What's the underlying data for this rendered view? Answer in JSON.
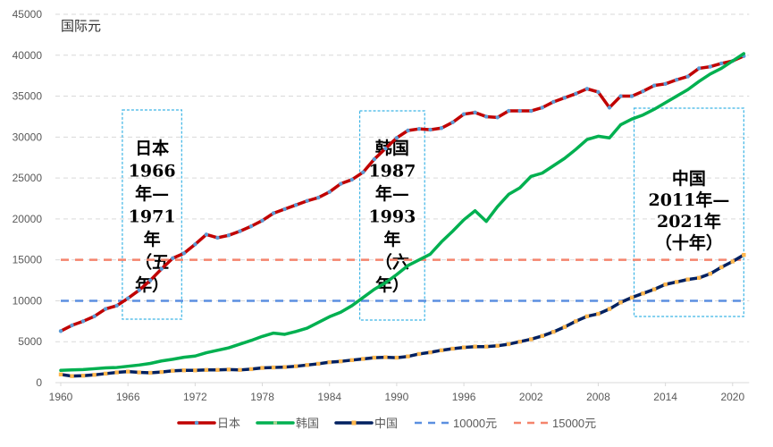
{
  "chart_data": {
    "type": "line",
    "unit_label": "国际元",
    "x": [
      1960,
      1961,
      1962,
      1963,
      1964,
      1965,
      1966,
      1967,
      1968,
      1969,
      1970,
      1971,
      1972,
      1973,
      1974,
      1975,
      1976,
      1977,
      1978,
      1979,
      1980,
      1981,
      1982,
      1983,
      1984,
      1985,
      1986,
      1987,
      1988,
      1989,
      1990,
      1991,
      1992,
      1993,
      1994,
      1995,
      1996,
      1997,
      1998,
      1999,
      2000,
      2001,
      2002,
      2003,
      2004,
      2005,
      2006,
      2007,
      2008,
      2009,
      2010,
      2011,
      2012,
      2013,
      2014,
      2015,
      2016,
      2017,
      2018,
      2019,
      2020,
      2021
    ],
    "xticks": [
      "1960",
      "1966",
      "1972",
      "1978",
      "1984",
      "1990",
      "1996",
      "2002",
      "2008",
      "2014",
      "2020"
    ],
    "yticks": [
      "0",
      "5000",
      "10000",
      "15000",
      "20000",
      "25000",
      "30000",
      "35000",
      "40000",
      "45000"
    ],
    "ylim": [
      0,
      45000
    ],
    "grid": true,
    "legend_position": "bottom",
    "series": [
      {
        "name": "日本",
        "color": "#C00000",
        "marker_color": "#5B9BD5",
        "values": [
          6300,
          7000,
          7500,
          8100,
          9000,
          9400,
          10300,
          11300,
          12500,
          13900,
          15200,
          15800,
          16900,
          18100,
          17700,
          18000,
          18500,
          19100,
          19800,
          20700,
          21200,
          21700,
          22200,
          22600,
          23300,
          24300,
          24800,
          25700,
          27300,
          28600,
          29900,
          30800,
          31000,
          30900,
          31100,
          31800,
          32800,
          33000,
          32500,
          32400,
          33200,
          33200,
          33200,
          33600,
          34300,
          34800,
          35300,
          35900,
          35500,
          33600,
          35000,
          35000,
          35600,
          36300,
          36500,
          37000,
          37400,
          38400,
          38600,
          39000,
          39300,
          39900
        ]
      },
      {
        "name": "韩国",
        "color": "#00B050",
        "marker_color": "#A9D18E",
        "values": [
          1500,
          1550,
          1600,
          1700,
          1800,
          1850,
          2000,
          2150,
          2350,
          2650,
          2850,
          3100,
          3250,
          3650,
          3950,
          4250,
          4700,
          5150,
          5650,
          6050,
          5900,
          6250,
          6650,
          7350,
          8050,
          8600,
          9400,
          10400,
          11400,
          12200,
          13200,
          14300,
          15000,
          15700,
          17200,
          18500,
          19900,
          21000,
          19700,
          21500,
          23000,
          23800,
          25200,
          25600,
          26500,
          27400,
          28500,
          29700,
          30100,
          29900,
          31500,
          32200,
          32700,
          33400,
          34200,
          35000,
          35800,
          36800,
          37700,
          38400,
          39300,
          40200
        ]
      },
      {
        "name": "中国",
        "color": "#002060",
        "marker_color": "#FFB74D",
        "values": [
          1000,
          800,
          850,
          950,
          1100,
          1250,
          1350,
          1250,
          1200,
          1300,
          1450,
          1500,
          1500,
          1550,
          1550,
          1600,
          1550,
          1650,
          1800,
          1850,
          1900,
          2000,
          2150,
          2300,
          2500,
          2600,
          2750,
          2900,
          3050,
          3100,
          3050,
          3200,
          3500,
          3700,
          3950,
          4150,
          4300,
          4400,
          4400,
          4500,
          4700,
          5000,
          5300,
          5700,
          6200,
          6800,
          7500,
          8100,
          8400,
          9000,
          9800,
          10400,
          10900,
          11400,
          12000,
          12300,
          12600,
          12800,
          13300,
          14100,
          14800,
          15600
        ]
      },
      {
        "name": "10000元",
        "color": "#5B8FE0",
        "constant": 10000
      },
      {
        "name": "15000元",
        "color": "#F4846C",
        "constant": 15000
      }
    ],
    "annotations": [
      {
        "lines": [
          "日本",
          "1966",
          "年—",
          "1971",
          "年",
          "（五",
          "年）"
        ],
        "from": 1965.5,
        "to": 1970.8,
        "box_color": "#3BB4E5"
      },
      {
        "lines": [
          "韩国",
          "1987",
          "年—",
          "1993",
          "年",
          "（六",
          "年）"
        ],
        "from": 1986.7,
        "to": 1992.5,
        "box_color": "#3BB4E5"
      },
      {
        "lines": [
          "中国",
          "2011年—",
          "2021年",
          "（十年）"
        ],
        "from": 2011.2,
        "to": 2021.0,
        "box_color": "#3BB4E5"
      }
    ]
  }
}
